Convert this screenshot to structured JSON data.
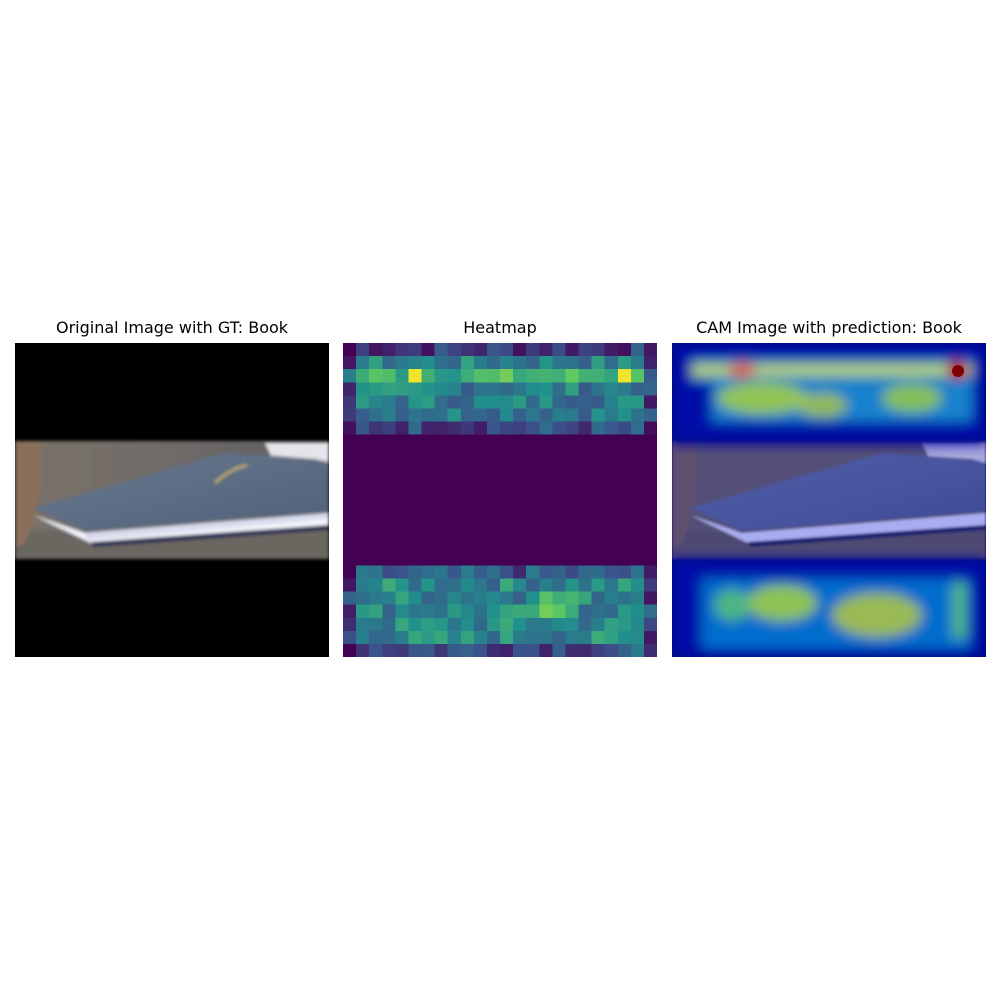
{
  "figure": {
    "panels": [
      {
        "title": "Original Image with GT: Book",
        "subject": "book-photo"
      },
      {
        "title": "Heatmap",
        "colormap": "viridis"
      },
      {
        "title": "CAM Image with prediction: Book",
        "colormap": "jet-overlay"
      }
    ]
  },
  "colors": {
    "letterbox": "#000000",
    "viridis_low": "#440154",
    "viridis_mid": "#21918c",
    "viridis_high": "#fde725",
    "jet_low": "#00008b",
    "jet_high": "#8b0000",
    "book_cover": "#5c6e84",
    "book_pages": "#f2f4fa"
  }
}
